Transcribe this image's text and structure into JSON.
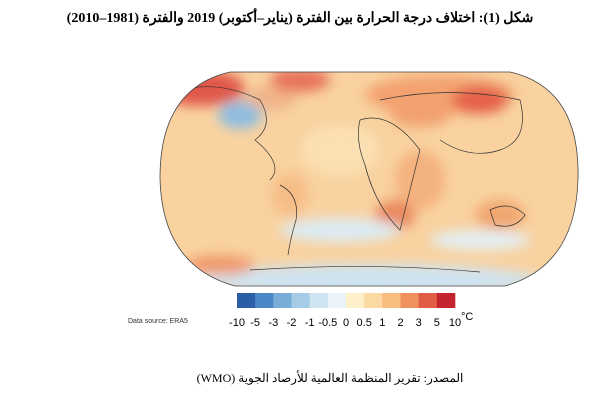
{
  "title": "شكل (1): اختلاف درجة الحرارة بين الفترة (يناير–أكتوبر) 2019 والفترة (1981–2010)",
  "legend": {
    "ticks": [
      "-10",
      "-5",
      "-3",
      "-2",
      "-1",
      "-0.5",
      "0",
      "0.5",
      "1",
      "2",
      "3",
      "5",
      "10"
    ],
    "unit": "°C",
    "colors": [
      "#2b5ea7",
      "#4b88c7",
      "#79acd7",
      "#a6cbe6",
      "#cfe4f1",
      "#eaf3f7",
      "#fdf0c8",
      "#fcd9a2",
      "#f8bc7c",
      "#f0915d",
      "#e15c44",
      "#c3242d"
    ]
  },
  "data_source": "Data source: ERA5",
  "caption": "المصدر: تقرير المنظمة العالمية للأرصاد الجوية (WMO)"
}
